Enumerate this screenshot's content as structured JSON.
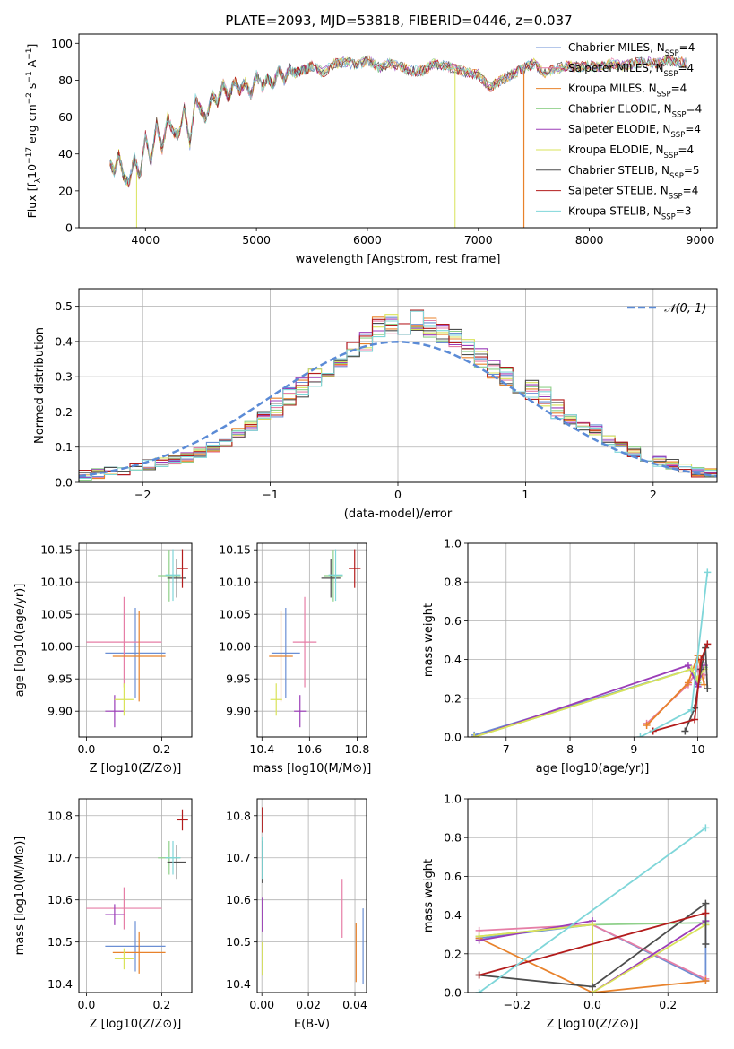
{
  "figure_title": "PLATE=2093, MJD=53818, FIBERID=0446, z=0.037",
  "colors": {
    "Chabrier MILES": "#6b8fd4",
    "Salpeter MILES": "#e67ea6",
    "Kroupa MILES": "#e8822b",
    "Chabrier ELODIE": "#8fd08a",
    "Salpeter ELODIE": "#9b3db8",
    "Kroupa ELODIE": "#d9e35a",
    "Chabrier STELIB": "#4d4d4d",
    "Salpeter STELIB": "#b31c1c",
    "Kroupa STELIB": "#7fd6d9",
    "normal": "#5b8bd6"
  },
  "chart_data": [
    {
      "id": "spectrum",
      "type": "line",
      "xlabel": "wavelength [Angstrom, rest frame]",
      "ylabel": "Flux [f",
      "ylabel_parts": [
        "Flux [f",
        "λ",
        "10",
        "−17",
        " erg cm",
        "−2",
        " s",
        "−1",
        " A",
        "−1",
        "]"
      ],
      "xlim": [
        3400,
        9150
      ],
      "ylim": [
        0,
        105
      ],
      "xticks": [
        4000,
        5000,
        6000,
        7000,
        8000,
        9000
      ],
      "yticks": [
        0,
        20,
        40,
        60,
        80,
        100
      ],
      "spectrum_x": [
        3680,
        3720,
        3760,
        3800,
        3850,
        3900,
        3950,
        4000,
        4050,
        4100,
        4150,
        4200,
        4250,
        4300,
        4350,
        4400,
        4450,
        4500,
        4550,
        4600,
        4650,
        4700,
        4750,
        4800,
        4850,
        4900,
        4950,
        5000,
        5050,
        5100,
        5150,
        5200,
        5250,
        5300,
        5350,
        5400,
        5450,
        5500,
        5600,
        5700,
        5800,
        5900,
        6000,
        6100,
        6200,
        6300,
        6400,
        6500,
        6600,
        6700,
        6800,
        6900,
        7000,
        7100,
        7200,
        7300,
        7400,
        7500,
        7600,
        7700,
        7800,
        7900,
        8000,
        8100,
        8200,
        8300,
        8400,
        8500,
        8600,
        8700,
        8800,
        8900
      ],
      "spectrum_y": [
        36,
        30,
        40,
        28,
        24,
        38,
        27,
        50,
        35,
        57,
        42,
        60,
        52,
        50,
        65,
        45,
        70,
        64,
        58,
        73,
        68,
        78,
        70,
        80,
        74,
        79,
        72,
        83,
        76,
        81,
        77,
        86,
        80,
        86,
        84,
        85,
        86,
        88,
        84,
        89,
        90,
        88,
        91,
        87,
        89,
        87,
        85,
        85,
        89,
        88,
        86,
        84,
        83,
        76,
        80,
        83,
        86,
        89,
        84,
        86,
        88,
        87,
        88,
        87,
        89,
        88,
        89,
        90,
        89,
        91,
        90,
        89
      ],
      "series": [
        {
          "name": "Chabrier MILES, N",
          "sub": "SSP",
          "n": "=4"
        },
        {
          "name": "Salpeter MILES, N",
          "sub": "SSP",
          "n": "=4"
        },
        {
          "name": "Kroupa MILES, N",
          "sub": "SSP",
          "n": "=4"
        },
        {
          "name": "Chabrier ELODIE, N",
          "sub": "SSP",
          "n": "=4"
        },
        {
          "name": "Salpeter ELODIE, N",
          "sub": "SSP",
          "n": "=4"
        },
        {
          "name": "Kroupa ELODIE, N",
          "sub": "SSP",
          "n": "=4"
        },
        {
          "name": "Chabrier STELIB, N",
          "sub": "SSP",
          "n": "=5"
        },
        {
          "name": "Salpeter STELIB, N",
          "sub": "SSP",
          "n": "=4"
        },
        {
          "name": "Kroupa STELIB, N",
          "sub": "SSP",
          "n": "=3"
        }
      ],
      "legend": "top-right"
    },
    {
      "id": "residuals",
      "type": "histogram",
      "xlabel": "(data-model)/error",
      "ylabel": "Normed distribution",
      "xlim": [
        -2.5,
        2.5
      ],
      "ylim": [
        0,
        0.55
      ],
      "xticks": [
        -2,
        -1,
        0,
        1,
        2
      ],
      "yticks": [
        0.0,
        0.1,
        0.2,
        0.3,
        0.4,
        0.5
      ],
      "grid": true,
      "bin_edges_start": -2.5,
      "bin_width": 0.1,
      "hist_values": [
        0.02,
        0.025,
        0.03,
        0.035,
        0.04,
        0.05,
        0.055,
        0.065,
        0.07,
        0.085,
        0.1,
        0.115,
        0.14,
        0.16,
        0.19,
        0.215,
        0.245,
        0.27,
        0.3,
        0.32,
        0.345,
        0.37,
        0.4,
        0.44,
        0.45,
        0.43,
        0.46,
        0.44,
        0.42,
        0.41,
        0.38,
        0.35,
        0.32,
        0.3,
        0.28,
        0.26,
        0.24,
        0.21,
        0.18,
        0.16,
        0.15,
        0.12,
        0.1,
        0.085,
        0.07,
        0.06,
        0.05,
        0.04,
        0.03,
        0.025
      ],
      "normal_label": "𝒩(0, 1)",
      "legend": "top-right"
    },
    {
      "id": "age-vs-Z",
      "type": "scatter",
      "xlabel": "Z [log10(Z/Z⊙)]",
      "ylabel": "age  [log10(age/yr)]",
      "xlim": [
        -0.02,
        0.28
      ],
      "ylim": [
        9.86,
        10.16
      ],
      "xticks": [
        0.0,
        0.2
      ],
      "yticks": [
        9.9,
        9.95,
        10.0,
        10.05,
        10.1,
        10.15
      ],
      "points": [
        {
          "series": "Chabrier MILES",
          "x": 0.13,
          "xerr": 0.08,
          "y": 9.99,
          "yerr": 0.07
        },
        {
          "series": "Salpeter MILES",
          "x": 0.1,
          "xerr": 0.1,
          "y": 10.007,
          "yerr": 0.07
        },
        {
          "series": "Kroupa MILES",
          "x": 0.14,
          "xerr": 0.07,
          "y": 9.985,
          "yerr": 0.07
        },
        {
          "series": "Chabrier ELODIE",
          "x": 0.22,
          "xerr": 0.03,
          "y": 10.11,
          "yerr": 0.04
        },
        {
          "series": "Salpeter ELODIE",
          "x": 0.075,
          "xerr": 0.025,
          "y": 9.9,
          "yerr": 0.025
        },
        {
          "series": "Kroupa ELODIE",
          "x": 0.1,
          "xerr": 0.025,
          "y": 9.918,
          "yerr": 0.025
        },
        {
          "series": "Chabrier STELIB",
          "x": 0.24,
          "xerr": 0.025,
          "y": 10.106,
          "yerr": 0.03
        },
        {
          "series": "Salpeter STELIB",
          "x": 0.255,
          "xerr": 0.015,
          "y": 10.121,
          "yerr": 0.03
        },
        {
          "series": "Kroupa STELIB",
          "x": 0.23,
          "xerr": 0.02,
          "y": 10.111,
          "yerr": 0.04
        }
      ]
    },
    {
      "id": "age-vs-mass",
      "type": "scatter",
      "xlabel": "mass [log10(M/M⊙)]",
      "ylabel": "",
      "xlim": [
        10.38,
        10.84
      ],
      "ylim": [
        9.86,
        10.16
      ],
      "xticks": [
        10.4,
        10.6,
        10.8
      ],
      "yticks": [
        9.9,
        9.95,
        10.0,
        10.05,
        10.1,
        10.15
      ],
      "points": [
        {
          "series": "Chabrier MILES",
          "x": 10.5,
          "xerr": 0.06,
          "y": 9.99,
          "yerr": 0.07
        },
        {
          "series": "Salpeter MILES",
          "x": 10.58,
          "xerr": 0.05,
          "y": 10.007,
          "yerr": 0.07
        },
        {
          "series": "Kroupa MILES",
          "x": 10.48,
          "xerr": 0.05,
          "y": 9.985,
          "yerr": 0.07
        },
        {
          "series": "Chabrier ELODIE",
          "x": 10.7,
          "xerr": 0.04,
          "y": 10.11,
          "yerr": 0.04
        },
        {
          "series": "Salpeter ELODIE",
          "x": 10.56,
          "xerr": 0.025,
          "y": 9.9,
          "yerr": 0.025
        },
        {
          "series": "Kroupa ELODIE",
          "x": 10.46,
          "xerr": 0.025,
          "y": 9.918,
          "yerr": 0.025
        },
        {
          "series": "Chabrier STELIB",
          "x": 10.69,
          "xerr": 0.04,
          "y": 10.106,
          "yerr": 0.03
        },
        {
          "series": "Salpeter STELIB",
          "x": 10.79,
          "xerr": 0.025,
          "y": 10.121,
          "yerr": 0.03
        },
        {
          "series": "Kroupa STELIB",
          "x": 10.71,
          "xerr": 0.03,
          "y": 10.111,
          "yerr": 0.04
        }
      ]
    },
    {
      "id": "weight-vs-age",
      "type": "line",
      "xlabel": "age  [log10(age/yr)]",
      "ylabel": "mass weight",
      "xlim": [
        6.4,
        10.3
      ],
      "ylim": [
        0.0,
        1.0
      ],
      "xticks": [
        7,
        8,
        9,
        10
      ],
      "yticks": [
        0.0,
        0.2,
        0.4,
        0.6,
        0.8,
        1.0
      ],
      "series": [
        {
          "name": "Chabrier MILES",
          "x": [
            6.5,
            9.9,
            10.0,
            10.1
          ],
          "y": [
            0.01,
            0.35,
            0.27,
            0.36
          ]
        },
        {
          "name": "Salpeter MILES",
          "x": [
            9.2,
            9.85,
            10.0,
            10.1
          ],
          "y": [
            0.07,
            0.27,
            0.35,
            0.32
          ]
        },
        {
          "name": "Kroupa MILES",
          "x": [
            9.2,
            9.85,
            10.0,
            10.1
          ],
          "y": [
            0.06,
            0.28,
            0.42,
            0.27
          ]
        },
        {
          "name": "Chabrier ELODIE",
          "x": [
            6.5,
            9.9,
            10.0,
            10.1
          ],
          "y": [
            0.0,
            0.35,
            0.28,
            0.36
          ]
        },
        {
          "name": "Salpeter ELODIE",
          "x": [
            6.5,
            9.85,
            10.0,
            10.1
          ],
          "y": [
            0.0,
            0.37,
            0.26,
            0.37
          ]
        },
        {
          "name": "Kroupa ELODIE",
          "x": [
            6.5,
            9.9,
            10.0,
            10.1
          ],
          "y": [
            0.0,
            0.35,
            0.3,
            0.35
          ]
        },
        {
          "name": "Chabrier STELIB",
          "x": [
            9.8,
            9.95,
            10.05,
            10.12,
            10.15
          ],
          "y": [
            0.03,
            0.15,
            0.35,
            0.46,
            0.25
          ]
        },
        {
          "name": "Salpeter STELIB",
          "x": [
            9.3,
            9.95,
            10.05,
            10.15
          ],
          "y": [
            0.03,
            0.09,
            0.4,
            0.48
          ]
        },
        {
          "name": "Kroupa STELIB",
          "x": [
            9.1,
            9.9,
            10.15
          ],
          "y": [
            0.0,
            0.14,
            0.85
          ]
        }
      ]
    },
    {
      "id": "mass-vs-Z",
      "type": "scatter",
      "xlabel": "Z [log10(Z/Z⊙)]",
      "ylabel": "mass [log10(M/M⊙)]",
      "xlim": [
        -0.02,
        0.28
      ],
      "ylim": [
        10.38,
        10.84
      ],
      "xticks": [
        0.0,
        0.2
      ],
      "yticks": [
        10.4,
        10.5,
        10.6,
        10.7,
        10.8
      ],
      "points": [
        {
          "series": "Chabrier MILES",
          "x": 0.13,
          "xerr": 0.08,
          "y": 10.49,
          "yerr": 0.06
        },
        {
          "series": "Salpeter MILES",
          "x": 0.1,
          "xerr": 0.1,
          "y": 10.58,
          "yerr": 0.05
        },
        {
          "series": "Kroupa MILES",
          "x": 0.14,
          "xerr": 0.07,
          "y": 10.475,
          "yerr": 0.05
        },
        {
          "series": "Chabrier ELODIE",
          "x": 0.22,
          "xerr": 0.03,
          "y": 10.7,
          "yerr": 0.04
        },
        {
          "series": "Salpeter ELODIE",
          "x": 0.075,
          "xerr": 0.025,
          "y": 10.565,
          "yerr": 0.025
        },
        {
          "series": "Kroupa ELODIE",
          "x": 0.1,
          "xerr": 0.025,
          "y": 10.46,
          "yerr": 0.025
        },
        {
          "series": "Chabrier STELIB",
          "x": 0.24,
          "xerr": 0.025,
          "y": 10.69,
          "yerr": 0.04
        },
        {
          "series": "Salpeter STELIB",
          "x": 0.255,
          "xerr": 0.015,
          "y": 10.79,
          "yerr": 0.025
        },
        {
          "series": "Kroupa STELIB",
          "x": 0.23,
          "xerr": 0.02,
          "y": 10.7,
          "yerr": 0.04
        }
      ]
    },
    {
      "id": "mass-vs-EBV",
      "type": "scatter",
      "xlabel": "E(B-V)",
      "ylabel": "",
      "xlim": [
        -0.002,
        0.045
      ],
      "ylim": [
        10.38,
        10.84
      ],
      "xticks": [
        0.0,
        0.02,
        0.04
      ],
      "yticks": [
        10.4,
        10.5,
        10.6,
        10.7,
        10.8
      ],
      "points": [
        {
          "series": "Chabrier MILES",
          "x": 0.0435,
          "xerr": 0,
          "y": 10.49,
          "yerr": 0.09
        },
        {
          "series": "Salpeter MILES",
          "x": 0.0345,
          "xerr": 0,
          "y": 10.58,
          "yerr": 0.07
        },
        {
          "series": "Kroupa MILES",
          "x": 0.0405,
          "xerr": 0,
          "y": 10.475,
          "yerr": 0.07
        },
        {
          "series": "Chabrier ELODIE",
          "x": 0.0002,
          "xerr": 0,
          "y": 10.7,
          "yerr": 0.05
        },
        {
          "series": "Salpeter ELODIE",
          "x": 0.0002,
          "xerr": 0,
          "y": 10.565,
          "yerr": 0.04
        },
        {
          "series": "Kroupa ELODIE",
          "x": 0.0002,
          "xerr": 0,
          "y": 10.46,
          "yerr": 0.04
        },
        {
          "series": "Chabrier STELIB",
          "x": 0.0002,
          "xerr": 0,
          "y": 10.69,
          "yerr": 0.05
        },
        {
          "series": "Salpeter STELIB",
          "x": 0.0002,
          "xerr": 0,
          "y": 10.79,
          "yerr": 0.03
        },
        {
          "series": "Kroupa STELIB",
          "x": 0.0002,
          "xerr": 0,
          "y": 10.7,
          "yerr": 0.05
        }
      ]
    },
    {
      "id": "weight-vs-Z",
      "type": "line",
      "xlabel": "Z [log10(Z/Z⊙)]",
      "ylabel": "mass weight",
      "xlim": [
        -0.33,
        0.33
      ],
      "ylim": [
        0.0,
        1.0
      ],
      "xticks": [
        -0.2,
        0.0,
        0.2
      ],
      "yticks": [
        0.0,
        0.2,
        0.4,
        0.6,
        0.8,
        1.0
      ],
      "series": [
        {
          "name": "Chabrier MILES",
          "x": [
            -0.3,
            0.0,
            0.3,
            0.3
          ],
          "y": [
            0.28,
            0.35,
            0.06,
            0.35
          ]
        },
        {
          "name": "Salpeter MILES",
          "x": [
            -0.3,
            0.0,
            0.3
          ],
          "y": [
            0.32,
            0.35,
            0.07
          ]
        },
        {
          "name": "Kroupa MILES",
          "x": [
            -0.3,
            0.0,
            0.3
          ],
          "y": [
            0.28,
            0.0,
            0.06
          ]
        },
        {
          "name": "Chabrier ELODIE",
          "x": [
            -0.3,
            0.0,
            0.3
          ],
          "y": [
            0.29,
            0.35,
            0.36
          ]
        },
        {
          "name": "Salpeter ELODIE",
          "x": [
            -0.3,
            0.0,
            0.0,
            0.3
          ],
          "y": [
            0.27,
            0.37,
            0.0,
            0.37
          ]
        },
        {
          "name": "Kroupa ELODIE",
          "x": [
            -0.3,
            0.0,
            0.0,
            0.3
          ],
          "y": [
            0.29,
            0.35,
            0.0,
            0.35
          ]
        },
        {
          "name": "Chabrier STELIB",
          "x": [
            -0.3,
            0.0,
            0.3,
            0.3
          ],
          "y": [
            0.09,
            0.03,
            0.46,
            0.25
          ]
        },
        {
          "name": "Salpeter STELIB",
          "x": [
            -0.3,
            0.3
          ],
          "y": [
            0.09,
            0.41
          ]
        },
        {
          "name": "Kroupa STELIB",
          "x": [
            -0.3,
            0.3
          ],
          "y": [
            0.0,
            0.85
          ]
        }
      ]
    }
  ]
}
